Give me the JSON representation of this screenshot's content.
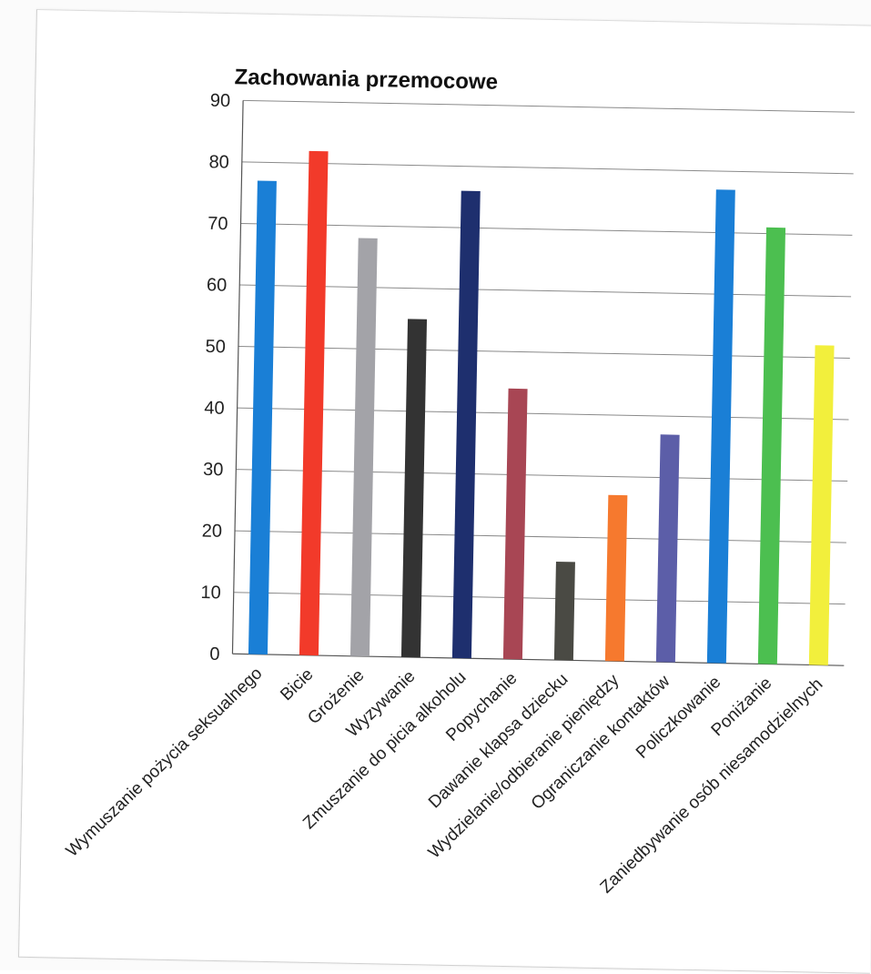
{
  "chart_data": {
    "type": "bar",
    "title": "Zachowania przemocowe",
    "xlabel": "",
    "ylabel": "",
    "ylim": [
      0,
      90
    ],
    "yticks": [
      0,
      10,
      20,
      30,
      40,
      50,
      60,
      70,
      80,
      90
    ],
    "grid": true,
    "legend": "none",
    "categories": [
      "Wymuszanie pożycia seksualnego",
      "Bicie",
      "Grożenie",
      "Wyzywanie",
      "Zmuszanie do picia alkoholu",
      "Popychanie",
      "Dawanie klapsa dziecku",
      "Wydzielanie/odbieranie pieniędzy",
      "Ograniczanie kontaktów",
      "Policzkowanie",
      "Poniżanie",
      "Zaniedbywanie osób niesamodzielnych"
    ],
    "values": [
      77,
      82,
      68,
      55,
      76,
      44,
      16,
      27,
      37,
      77,
      71,
      52
    ],
    "colors": [
      "#1a7fd6",
      "#f23a2a",
      "#a3a3a8",
      "#333333",
      "#1e2f6e",
      "#a84654",
      "#4a4a44",
      "#f6792e",
      "#5c5ea8",
      "#1a7fd6",
      "#4cbf50",
      "#f2ef3c"
    ]
  }
}
